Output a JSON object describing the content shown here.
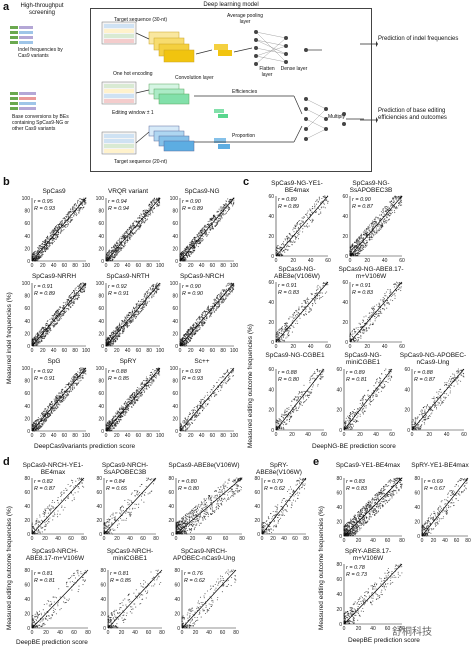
{
  "panel_a": {
    "label": "a",
    "screening_title": "High-throughput screening",
    "model_title": "Deep learning model",
    "indel_text": "Indel frequencies by Cas9 variants",
    "be_text": "Base conversions by BEs containing SpCas9-NG or other Cas9 variants",
    "target30": "Target sequence (30-nt)",
    "avg_pool": "Average pooling layer",
    "flatten": "Flatten layer",
    "dense": "Dense layer",
    "onehot": "One hot encoding",
    "conv": "Convolution layer",
    "editing_window": "Editing window ± 1",
    "efficiencies": "Efficiencies",
    "proportion": "Proportion",
    "target20": "Target sequence (20-nt)",
    "multiply": "Multiply",
    "pred_indel": "Prediction of indel frequencies",
    "pred_be": "Prediction of base editing efficiencies and outcomes",
    "acgt": "A C G T"
  },
  "panel_b": {
    "label": "b",
    "ylabel": "Measured indel frequencies (%)",
    "xlabel": "DeepCas9variants prediction score",
    "plots": [
      {
        "title": "SpCas9",
        "r": "r = 0.95",
        "R": "R = 0.93"
      },
      {
        "title": "VRQR variant",
        "r": "r = 0.94",
        "R": "R = 0.94"
      },
      {
        "title": "SpCas9-NG",
        "r": "r = 0.90",
        "R": "R = 0.89"
      },
      {
        "title": "SpCas9-NRRH",
        "r": "r = 0.91",
        "R": "R = 0.89"
      },
      {
        "title": "SpCas9-NRTH",
        "r": "r = 0.92",
        "R": "R = 0.91"
      },
      {
        "title": "SpCas9-NRCH",
        "r": "r = 0.90",
        "R": "R = 0.90"
      },
      {
        "title": "SpG",
        "r": "r = 0.92",
        "R": "R = 0.91"
      },
      {
        "title": "SpRY",
        "r": "r = 0.88",
        "R": "R = 0.85"
      },
      {
        "title": "Sc++",
        "r": "r = 0.93",
        "R": "R = 0.93"
      }
    ]
  },
  "panel_c": {
    "label": "c",
    "ylabel": "Measured editing outcome frequencies (%)",
    "xlabel": "DeepNG-BE prediction score",
    "plots": [
      {
        "title": "SpCas9-NG-YE1-BE4max",
        "r": "r = 0.89",
        "R": "R = 0.89"
      },
      {
        "title": "SpCas9-NG-SsAPOBEC3B",
        "r": "r = 0.90",
        "R": "R = 0.87"
      },
      {
        "title": "SpCas9-NG-ABE8e(V106W)",
        "r": "r = 0.91",
        "R": "R = 0.83"
      },
      {
        "title": "SpCas9-NG-ABE8.17-m+V106W",
        "r": "r = 0.91",
        "R": "R = 0.83"
      },
      {
        "title": "SpCas9-NG-CGBE1",
        "r": "r = 0.88",
        "R": "R = 0.80"
      },
      {
        "title": "SpCas9-NG-miniCGBE1",
        "r": "r = 0.89",
        "R": "R = 0.81"
      },
      {
        "title": "SpCas9-NG-APOBEC-nCas9-Ung",
        "r": "r = 0.88",
        "R": "R = 0.87"
      }
    ]
  },
  "panel_d": {
    "label": "d",
    "ylabel": "Measured editing outcome frequencies (%)",
    "xlabel": "DeepBE prediction score",
    "plots": [
      {
        "title": "SpCas9-NRCH-YE1-BE4max",
        "r": "r = 0.82",
        "R": "R = 0.87"
      },
      {
        "title": "SpCas9-NRCH-SsAPOBEC3B",
        "r": "r = 0.84",
        "R": "R = 0.65"
      },
      {
        "title": "SpCas9-ABE8e(V106W)",
        "r": "r = 0.80",
        "R": "R = 0.80"
      },
      {
        "title": "SpRY-ABE8e(V106W)",
        "r": "r = 0.79",
        "R": "R = 0.62"
      },
      {
        "title": "SpCas9-NRCH-ABE8.17-m+V106W",
        "r": "r = 0.81",
        "R": "R = 0.81"
      },
      {
        "title": "SpCas9-NRCH-miniCGBE1",
        "r": "r = 0.81",
        "R": "R = 0.85"
      },
      {
        "title": "SpCas9-NRCH-APOBEC-nCas9-Ung",
        "r": "r = 0.76",
        "R": "R = 0.62"
      }
    ]
  },
  "panel_e": {
    "label": "e",
    "ylabel": "Measured editing outcome frequencies (%)",
    "xlabel": "DeepBE prediction score",
    "plots": [
      {
        "title": "SpCas9-YE1-BE4max",
        "r": "r = 0.83",
        "R": "R = 0.83"
      },
      {
        "title": "SpRY-YE1-BE4max",
        "r": "r = 0.69",
        "R": "R = 0.67"
      },
      {
        "title": "SpRY-ABE8.17-m+V106W",
        "r": "r = 0.78",
        "R": "R = 0.73"
      }
    ]
  },
  "watermark": "舒桐科技"
}
